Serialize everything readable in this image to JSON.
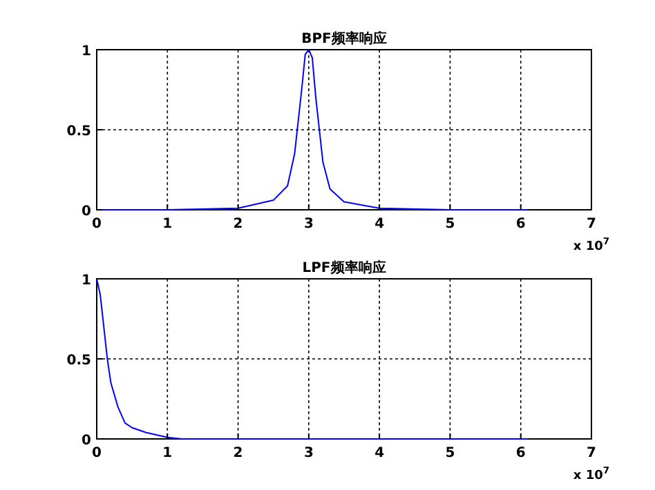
{
  "chart_data": [
    {
      "type": "line",
      "title": "BPF频率响应",
      "xlabel": "x 10$^{7}$",
      "x": [
        0,
        1,
        2,
        2.5,
        2.7,
        2.8,
        2.9,
        2.95,
        3,
        3.05,
        3.1,
        3.2,
        3.3,
        3.5,
        4,
        5,
        6.1
      ],
      "series": [
        {
          "color": "#0000ff",
          "values": [
            0,
            0,
            0.01,
            0.06,
            0.15,
            0.35,
            0.75,
            0.97,
            1,
            0.95,
            0.7,
            0.3,
            0.13,
            0.05,
            0.01,
            0,
            0
          ]
        }
      ],
      "xlim": [
        0,
        7
      ],
      "xticks": [
        0,
        1,
        2,
        3,
        4,
        5,
        6,
        7
      ],
      "ylim": [
        0,
        1
      ],
      "yticks": [
        0,
        0.5,
        1
      ],
      "grid": true
    },
    {
      "type": "line",
      "title": "LPF频率响应",
      "xlabel": "x 10$^{7}$",
      "x": [
        0,
        0.05,
        0.1,
        0.15,
        0.2,
        0.3,
        0.4,
        0.5,
        0.7,
        1,
        1.2,
        2,
        6.1
      ],
      "series": [
        {
          "color": "#0000ff",
          "values": [
            1,
            0.9,
            0.7,
            0.5,
            0.35,
            0.2,
            0.1,
            0.07,
            0.04,
            0.01,
            0,
            0,
            0
          ]
        }
      ],
      "xlim": [
        0,
        7
      ],
      "xticks": [
        0,
        1,
        2,
        3,
        4,
        5,
        6,
        7
      ],
      "ylim": [
        0,
        1
      ],
      "yticks": [
        0,
        0.5,
        1
      ],
      "grid": true
    }
  ]
}
